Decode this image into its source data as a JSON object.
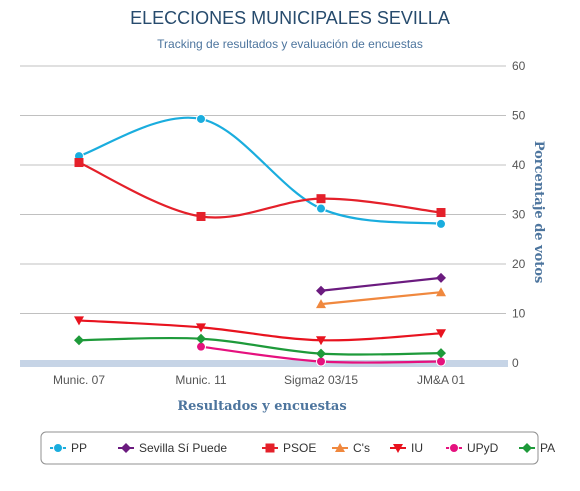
{
  "chart_data": {
    "type": "line",
    "title": "ELECCIONES MUNICIPALES SEVILLA",
    "subtitle": "Tracking de resultados y evaluación de encuestas",
    "xlabel": "Resultados y encuestas",
    "ylabel": "Porcentaje de votos",
    "categories": [
      "Munic. 07",
      "Munic. 11",
      "Sigma2 03/15",
      "JM&A 01"
    ],
    "ylim": [
      0,
      60
    ],
    "yticks": [
      0,
      10,
      20,
      30,
      40,
      50,
      60
    ],
    "grid": true,
    "legend_position": "bottom",
    "series": [
      {
        "name": "PP",
        "color": "#1aadde",
        "marker": "circle",
        "values": [
          41.8,
          49.3,
          31.2,
          28.1
        ]
      },
      {
        "name": "Sevilla Sí Puede",
        "color": "#6b1b7f",
        "marker": "diamond",
        "values": [
          null,
          null,
          14.6,
          17.2
        ]
      },
      {
        "name": "PSOE",
        "color": "#e4202a",
        "marker": "square",
        "values": [
          40.5,
          29.6,
          33.2,
          30.4
        ]
      },
      {
        "name": "C's",
        "color": "#f0883e",
        "marker": "triangle",
        "values": [
          null,
          null,
          11.9,
          14.3
        ]
      },
      {
        "name": "IU",
        "color": "#e8131f",
        "marker": "triangle-down",
        "values": [
          8.6,
          7.2,
          4.6,
          6.0
        ]
      },
      {
        "name": "UPyD",
        "color": "#e5117e",
        "marker": "circle",
        "values": [
          null,
          3.3,
          0.3,
          0.3
        ]
      },
      {
        "name": "PA",
        "color": "#1e9a3a",
        "marker": "diamond",
        "values": [
          4.6,
          4.9,
          1.9,
          2.0
        ]
      }
    ]
  }
}
